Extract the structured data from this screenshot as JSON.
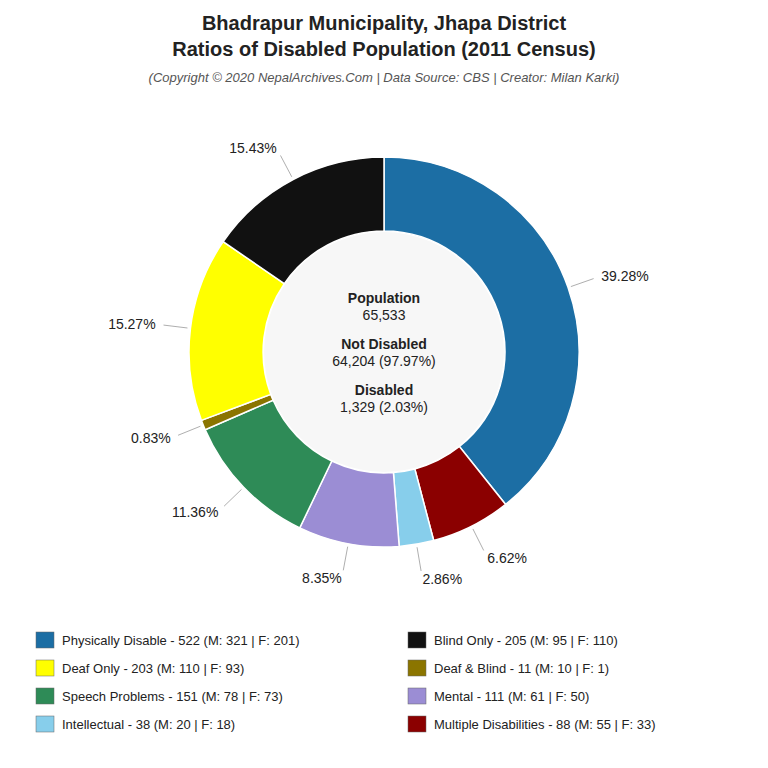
{
  "chart_data": {
    "type": "donut",
    "title": [
      "Bhadrapur Municipality, Jhapa District",
      "Ratios of Disabled Population (2011 Census)"
    ],
    "subtitle": "(Copyright © 2020 NepalArchives.Com | Data Source: CBS | Creator: Milan Karki)",
    "values": [
      39.28,
      6.62,
      2.86,
      8.35,
      11.36,
      0.83,
      15.27,
      15.43
    ],
    "value_labels": [
      "39.28%",
      "6.62%",
      "2.86%",
      "8.35%",
      "11.36%",
      "0.83%",
      "15.27%",
      "15.43%"
    ],
    "colors": [
      "#1c6ea4",
      "#8b0000",
      "#87ceeb",
      "#9b8dd4",
      "#2e8b57",
      "#8b7500",
      "#ffff00",
      "#111111"
    ],
    "data_labels": true,
    "annotations": [
      [
        "Population",
        "65,533"
      ],
      [
        "Not Disabled",
        "64,204 (97.97%)"
      ],
      [
        "Disabled",
        "1,329 (2.03%)"
      ]
    ],
    "legend_entries": [
      {
        "label": "Physically Disable - 522 (M: 321 | F: 201)",
        "color": "#1c6ea4"
      },
      {
        "label": "Deaf Only - 203 (M: 110 | F: 93)",
        "color": "#ffff00"
      },
      {
        "label": "Speech Problems - 151 (M: 78 | F: 73)",
        "color": "#2e8b57"
      },
      {
        "label": "Intellectual - 38 (M: 20 | F: 18)",
        "color": "#87ceeb"
      },
      {
        "label": "Blind Only - 205 (M: 95 | F: 110)",
        "color": "#111111"
      },
      {
        "label": "Deaf & Blind - 11 (M: 10 | F: 1)",
        "color": "#8b7500"
      },
      {
        "label": "Mental - 111 (M: 61 | F: 50)",
        "color": "#9b8dd4"
      },
      {
        "label": "Multiple Disabilities - 88 (M: 55 | F: 33)",
        "color": "#8b0000"
      }
    ]
  }
}
